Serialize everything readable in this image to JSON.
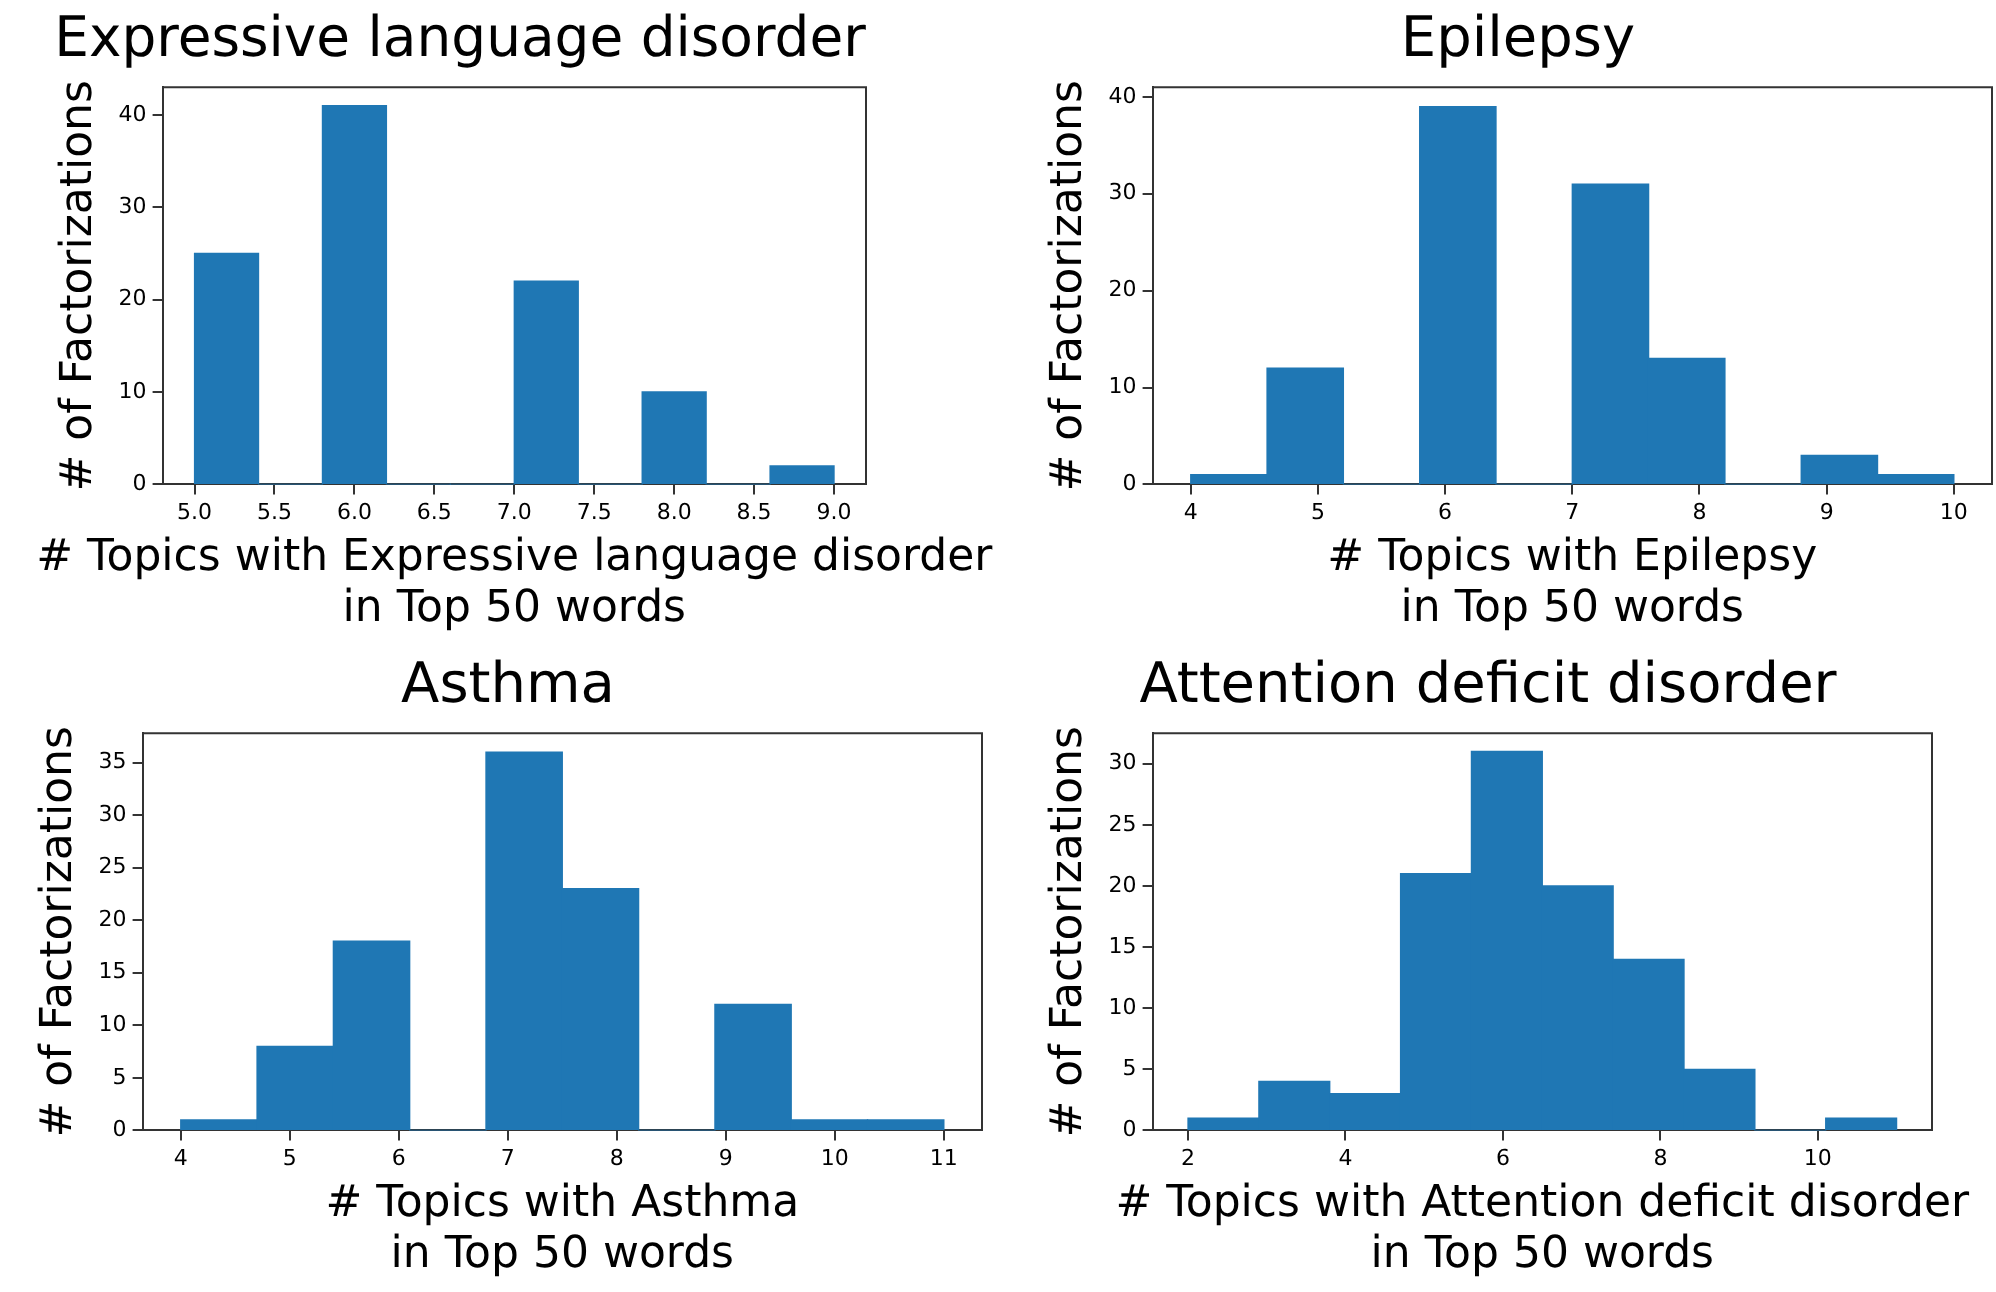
{
  "chart_data": [
    {
      "type": "histogram",
      "title": "Expressive language disorder",
      "xlabel": "# Topics with Expressive language disorder\nin Top 50 words",
      "ylabel": "# of Factorizations",
      "bins": [
        5,
        5.4,
        5.8,
        6.2,
        6.6,
        7,
        7.4,
        7.8,
        8.2,
        8.6,
        9
      ],
      "values": [
        25,
        0,
        41,
        0,
        0,
        22,
        0,
        10,
        0,
        2
      ],
      "color": "#1f77b4",
      "xlim": [
        4.8,
        9.2
      ],
      "xticks": [
        {
          "value": 5,
          "label": "5.0"
        },
        {
          "value": 5.5,
          "label": "5.5"
        },
        {
          "value": 6,
          "label": "6.0"
        },
        {
          "value": 6.5,
          "label": "6.5"
        },
        {
          "value": 7,
          "label": "7.0"
        },
        {
          "value": 7.5,
          "label": "7.5"
        },
        {
          "value": 8,
          "label": "8.0"
        },
        {
          "value": 8.5,
          "label": "8.5"
        },
        {
          "value": 9,
          "label": "9.0"
        }
      ],
      "ylim": [
        0,
        43
      ],
      "yticks": [
        0,
        10,
        20,
        30,
        40
      ]
    },
    {
      "type": "histogram",
      "title": "Epilepsy",
      "xlabel": "# Topics with Epilepsy\nin Top 50 words",
      "ylabel": "# of Factorizations",
      "bins": [
        4,
        4.6,
        5.2,
        5.8,
        6.4,
        7,
        7.6,
        8.2,
        8.8,
        9.4,
        10
      ],
      "values": [
        1,
        12,
        0,
        39,
        0,
        31,
        13,
        0,
        3,
        1
      ],
      "color": "#1f77b4",
      "xlim": [
        3.7,
        10.3
      ],
      "xticks": [
        4,
        5,
        6,
        7,
        8,
        9,
        10
      ],
      "ylim": [
        0,
        41
      ],
      "yticks": [
        0,
        10,
        20,
        30,
        40
      ]
    },
    {
      "type": "histogram",
      "title": "Asthma",
      "xlabel": "# Topics with Asthma\nin Top 50 words",
      "ylabel": "# of Factorizations",
      "bins": [
        4,
        4.7,
        5.4,
        6.1,
        6.8,
        7.5,
        8.2,
        8.9,
        9.6,
        10.3,
        11
      ],
      "values": [
        1,
        8,
        18,
        0,
        36,
        23,
        0,
        12,
        1,
        1
      ],
      "color": "#1f77b4",
      "xlim": [
        3.65,
        11.35
      ],
      "xticks": [
        4,
        5,
        6,
        7,
        8,
        9,
        10,
        11
      ],
      "ylim": [
        0,
        37.8
      ],
      "yticks": [
        0,
        5,
        10,
        15,
        20,
        25,
        30,
        35
      ]
    },
    {
      "type": "histogram",
      "title": "Attention deficit disorder",
      "xlabel": "# Topics with Attention deficit disorder\nin Top 50 words",
      "ylabel": "# of Factorizations",
      "bins": [
        2,
        2.9,
        3.8,
        4.7,
        5.6,
        6.5,
        7.4,
        8.3,
        9.2,
        10.1,
        11
      ],
      "values": [
        1,
        4,
        3,
        21,
        31,
        20,
        14,
        5,
        0,
        1
      ],
      "color": "#1f77b4",
      "xlim": [
        1.55,
        11.45
      ],
      "xticks": [
        2,
        4,
        6,
        8,
        10
      ],
      "ylim": [
        0,
        32.5
      ],
      "yticks": [
        0,
        5,
        10,
        15,
        20,
        25,
        30
      ]
    }
  ]
}
